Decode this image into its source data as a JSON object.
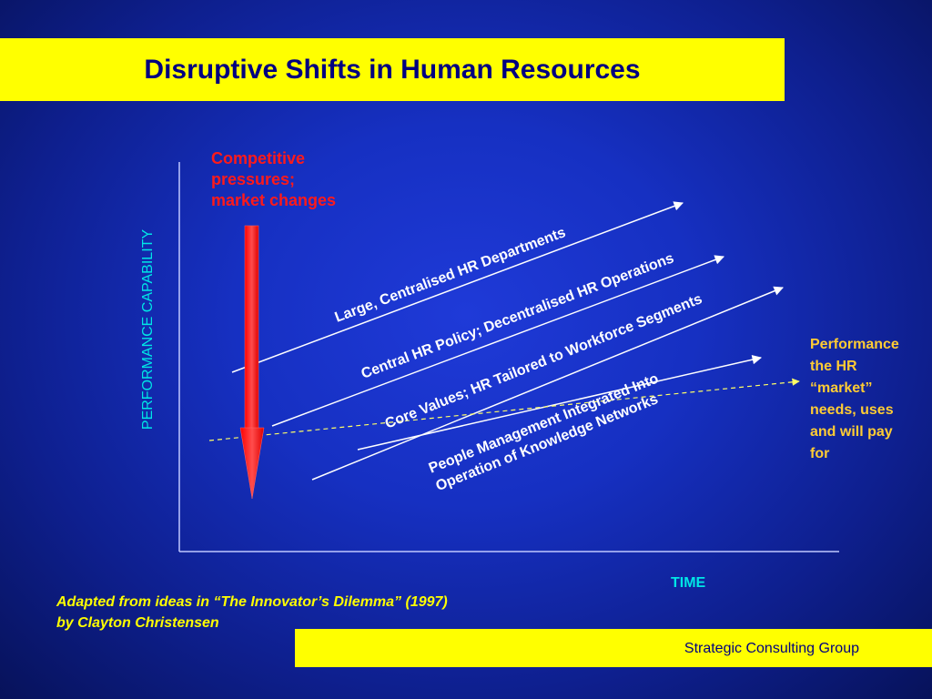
{
  "title": "Disruptive Shifts in Human Resources",
  "red_note": {
    "lines": [
      "Competitive",
      "pressures;",
      "market changes"
    ]
  },
  "axes": {
    "y_label": "PERFORMANCE CAPABILITY",
    "x_label": "TIME"
  },
  "bands": [
    {
      "label": "Large, Centralised HR Departments"
    },
    {
      "label": "Central HR Policy; Decentralised HR Operations"
    },
    {
      "label": "Core Values; HR Tailored to Workforce Segments"
    },
    {
      "label_line1": "People Management Integrated Into",
      "label_line2": "Operation of Knowledge Networks"
    }
  ],
  "right_note": {
    "lines": [
      "Performance",
      "the HR",
      "“market”",
      "needs,  uses",
      "and will pay",
      "for"
    ]
  },
  "source": {
    "line1": "Adapted from ideas in “The Innovator’s Dilemma”  (1997)",
    "line2": "by  Clayton Christensen"
  },
  "footer": "Strategic Consulting Group",
  "colors": {
    "title_bar": "#ffff00",
    "title_text": "#000080",
    "red_arrow": "#ff1a1a",
    "axis_label": "#00e6e6",
    "right_note": "#ffcc33",
    "source_text": "#ffff00",
    "band_text": "#ffffff"
  }
}
